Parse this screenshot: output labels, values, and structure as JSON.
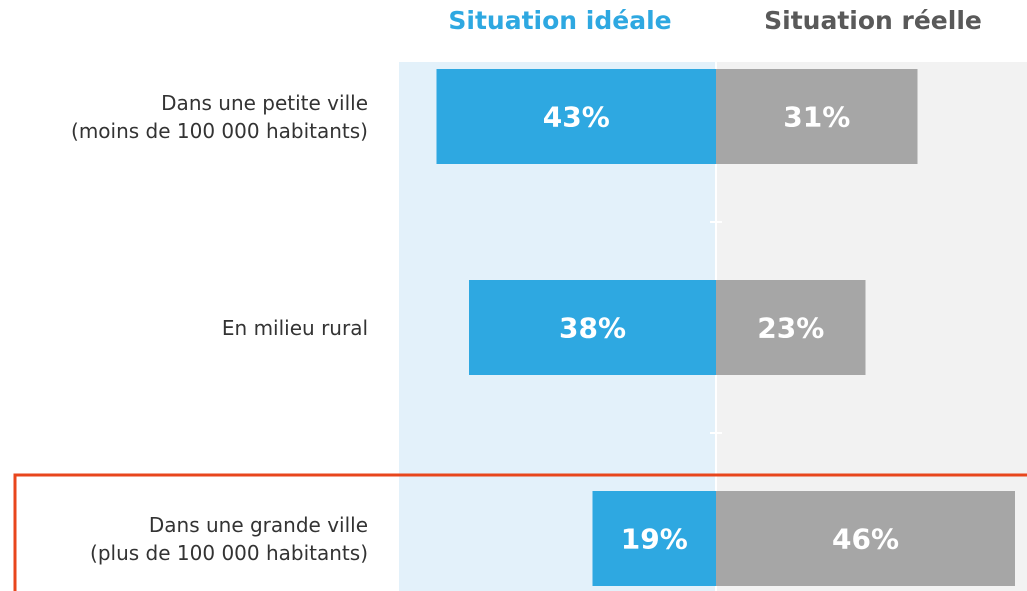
{
  "chart_data": {
    "type": "butterfly-bar",
    "categories": [
      "Dans une petite ville\n(moins de 100 000 habitants)",
      "En milieu rural",
      "Dans une grande ville\n(plus de 100 000 habitants)"
    ],
    "series": [
      {
        "name": "Situation idéale",
        "color": "#2ea8e1",
        "values": [
          43,
          38,
          19
        ],
        "value_labels": [
          "43%",
          "38%",
          "19%"
        ]
      },
      {
        "name": "Situation réelle",
        "color": "#a6a6a6",
        "values": [
          31,
          23,
          46
        ],
        "value_labels": [
          "31%",
          "23%",
          "46%"
        ]
      }
    ]
  }
}
